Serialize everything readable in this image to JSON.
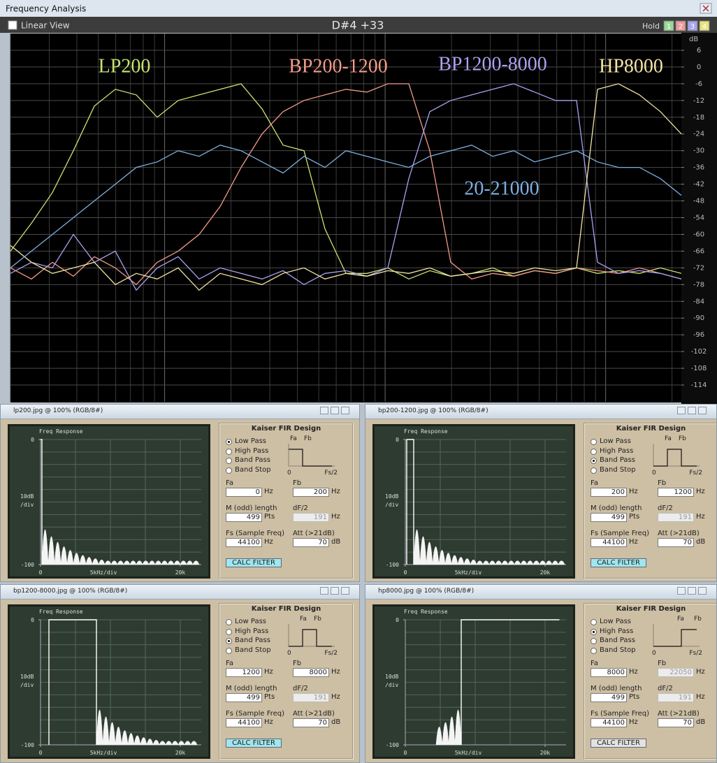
{
  "window": {
    "title": "Frequency Analysis",
    "linear_view": "Linear View",
    "note": "D#4 +33",
    "hold": "Hold",
    "hold_buttons": [
      {
        "label": 1,
        "color": "#9ad89a"
      },
      {
        "label": 2,
        "color": "#ec9a9a"
      },
      {
        "label": 3,
        "color": "#a8a4ec"
      },
      {
        "label": 4,
        "color": "#e6e47e"
      }
    ]
  },
  "chart_data": {
    "type": "line",
    "ylabel": "dB",
    "ylim": [
      -120,
      12
    ],
    "yticks": [
      6,
      0,
      -6,
      -12,
      -18,
      -24,
      -30,
      -36,
      -42,
      -48,
      -54,
      -60,
      -66,
      -72,
      -78,
      -84,
      -90,
      -96,
      -102,
      -108,
      -114
    ],
    "grid": true,
    "series": [
      {
        "name": "LP200",
        "color": "#c8e46e",
        "values": [
          -66,
          -56,
          -45,
          -30,
          -14,
          -8,
          -10,
          -18,
          -12,
          -10,
          -8,
          -6,
          -15,
          -28,
          -30,
          -58,
          -74,
          -74,
          -72,
          -76,
          -73,
          -75,
          -74,
          -72,
          -75,
          -73,
          -74,
          -72,
          -74,
          -73,
          -74,
          -72,
          -74
        ]
      },
      {
        "name": "BP200-1200",
        "color": "#f29a86",
        "values": [
          -72,
          -76,
          -70,
          -75,
          -68,
          -72,
          -78,
          -70,
          -66,
          -60,
          -50,
          -36,
          -24,
          -16,
          -12,
          -10,
          -8,
          -9,
          -6,
          -6,
          -30,
          -70,
          -76,
          -74,
          -75,
          -73,
          -74,
          -72,
          -73,
          -74,
          -72,
          -74,
          -76
        ]
      },
      {
        "name": "BP1200-8000",
        "color": "#aaa2f0",
        "values": [
          -74,
          -70,
          -72,
          -60,
          -70,
          -66,
          -80,
          -72,
          -68,
          -76,
          -72,
          -74,
          -76,
          -73,
          -78,
          -74,
          -73,
          -75,
          -72,
          -40,
          -16,
          -12,
          -10,
          -8,
          -6,
          -9,
          -12,
          -12,
          -70,
          -74,
          -73,
          -74,
          -76
        ]
      },
      {
        "name": "HP8000",
        "color": "#f2e4a4",
        "values": [
          -64,
          -70,
          -74,
          -72,
          -70,
          -78,
          -74,
          -76,
          -72,
          -80,
          -74,
          -76,
          -78,
          -74,
          -72,
          -76,
          -74,
          -75,
          -73,
          -74,
          -72,
          -75,
          -74,
          -73,
          -74,
          -72,
          -73,
          -72,
          -8,
          -6,
          -10,
          -16,
          -24
        ]
      },
      {
        "name": "20-21000",
        "color": "#7eb0e2",
        "values": [
          -72,
          -66,
          -60,
          -54,
          -48,
          -42,
          -36,
          -34,
          -30,
          -32,
          -28,
          -30,
          -34,
          -38,
          -32,
          -36,
          -30,
          -32,
          -34,
          -36,
          -32,
          -30,
          -28,
          -32,
          -30,
          -34,
          -32,
          -30,
          -34,
          -36,
          -36,
          -40,
          -46
        ]
      }
    ]
  },
  "panels": [
    {
      "title": "lp200.jpg @ 100% (RGB/8#)",
      "plot_title": "Freq Response",
      "xlim": [
        0,
        23000
      ],
      "ylim": [
        -100,
        0
      ],
      "xticks": [
        0,
        {
          "value": 20000,
          "label": "20k"
        }
      ],
      "xlabel": "5kHz/div",
      "yticks": [
        0,
        -100
      ],
      "ylabel": [
        "10dB",
        "/div"
      ],
      "design_title": "Kaiser FIR Design",
      "modes": [
        "Low Pass",
        "High Pass",
        "Band Pass",
        "Band Stop"
      ],
      "selected": 0,
      "diagram": [
        "Fa",
        "Fb",
        "0",
        "Fs/2"
      ],
      "fields": [
        {
          "label": "Fa",
          "value": 0,
          "unit": "Hz"
        },
        {
          "label": "Fb",
          "value": 200,
          "unit": "Hz"
        },
        {
          "label": "M (odd) length",
          "value": 499,
          "unit": "Pts"
        },
        {
          "label": "dF/2",
          "value": 191,
          "unit": "Hz",
          "enabled": false
        },
        {
          "label": "Fs (Sample Freq)",
          "value": 44100,
          "unit": "Hz"
        },
        {
          "label": "Att (>21dB)",
          "value": 70,
          "unit": "dB"
        }
      ],
      "button": "CALC FILTER",
      "button_active": true
    },
    {
      "title": "bp200-1200.jpg @ 100% (RGB/8#)",
      "plot_title": "Freq Response",
      "xlim": [
        0,
        23000
      ],
      "ylim": [
        -100,
        0
      ],
      "xticks": [
        0,
        {
          "value": 20000,
          "label": "20k"
        }
      ],
      "xlabel": "5kHz/div",
      "yticks": [
        0,
        -100
      ],
      "ylabel": [
        "10dB",
        "/div"
      ],
      "design_title": "Kaiser FIR Design",
      "modes": [
        "Low Pass",
        "High Pass",
        "Band Pass",
        "Band Stop"
      ],
      "selected": 2,
      "diagram": [
        "Fa",
        "Fb",
        "0",
        "Fs/2"
      ],
      "fields": [
        {
          "label": "Fa",
          "value": 200,
          "unit": "Hz"
        },
        {
          "label": "Fb",
          "value": 1200,
          "unit": "Hz"
        },
        {
          "label": "M (odd) length",
          "value": 499,
          "unit": "Pts"
        },
        {
          "label": "dF/2",
          "value": 191,
          "unit": "Hz",
          "enabled": false
        },
        {
          "label": "Fs (Sample Freq)",
          "value": 44100,
          "unit": "Hz"
        },
        {
          "label": "Att (>21dB)",
          "value": 70,
          "unit": "dB"
        }
      ],
      "button": "CALC FILTER",
      "button_active": true
    },
    {
      "title": "bp1200-8000.jpg @ 100% (RGB/8#)",
      "plot_title": "Freq Response",
      "xlim": [
        0,
        23000
      ],
      "ylim": [
        -100,
        0
      ],
      "xticks": [
        0,
        {
          "value": 20000,
          "label": "20k"
        }
      ],
      "xlabel": "5kHz/div",
      "yticks": [
        0,
        -100
      ],
      "ylabel": [
        "10dB",
        "/div"
      ],
      "design_title": "Kaiser FIR Design",
      "modes": [
        "Low Pass",
        "High Pass",
        "Band Pass",
        "Band Stop"
      ],
      "selected": 2,
      "diagram": [
        "Fa",
        "Fb",
        "0",
        "Fs/2"
      ],
      "fields": [
        {
          "label": "Fa",
          "value": 1200,
          "unit": "Hz"
        },
        {
          "label": "Fb",
          "value": 8000,
          "unit": "Hz"
        },
        {
          "label": "M (odd) length",
          "value": 499,
          "unit": "Pts"
        },
        {
          "label": "dF/2",
          "value": 191,
          "unit": "Hz",
          "enabled": false
        },
        {
          "label": "Fs (Sample Freq)",
          "value": 44100,
          "unit": "Hz"
        },
        {
          "label": "Att (>21dB)",
          "value": 70,
          "unit": "dB"
        }
      ],
      "button": "CALC FILTER",
      "button_active": true
    },
    {
      "title": "hp8000.jpg @ 100% (RGB/8#)",
      "plot_title": "Freq Response",
      "xlim": [
        0,
        23000
      ],
      "ylim": [
        -100,
        0
      ],
      "xticks": [
        0,
        {
          "value": 20000,
          "label": "20k"
        }
      ],
      "xlabel": "5kHz/div",
      "yticks": [
        0,
        -100
      ],
      "ylabel": [
        "10dB",
        "/div"
      ],
      "design_title": "Kaiser FIR Design",
      "modes": [
        "Low Pass",
        "High Pass",
        "Band Pass",
        "Band Stop"
      ],
      "selected": 1,
      "diagram": [
        "Fa",
        "Fb",
        "0",
        "Fs/2"
      ],
      "fields": [
        {
          "label": "Fa",
          "value": 8000,
          "unit": "Hz"
        },
        {
          "label": "Fb",
          "value": 22050,
          "unit": "Hz",
          "enabled": false
        },
        {
          "label": "M (odd) length",
          "value": 499,
          "unit": "Pts"
        },
        {
          "label": "dF/2",
          "value": 191,
          "unit": "Hz",
          "enabled": false
        },
        {
          "label": "Fs (Sample Freq)",
          "value": 44100,
          "unit": "Hz"
        },
        {
          "label": "Att (>21dB)",
          "value": 70,
          "unit": "dB"
        }
      ],
      "button": "CALC FILTER",
      "button_active": false
    }
  ]
}
